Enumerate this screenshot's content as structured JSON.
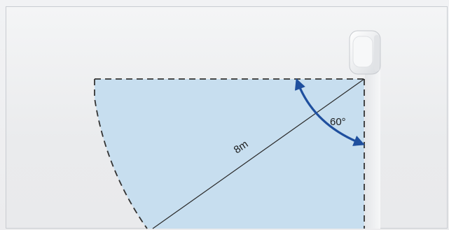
{
  "diagram": {
    "distance_label": "8m",
    "angle_label": "60°",
    "colors": {
      "zone_fill": "#c3dcef",
      "arrow": "#1f4f9e",
      "dashed_edge": "#333333",
      "background": "#eceded"
    },
    "icons": {
      "sensor": "motion-sensor-device-icon",
      "arrow_heads": "double-headed-curved-arrow-icon"
    }
  }
}
